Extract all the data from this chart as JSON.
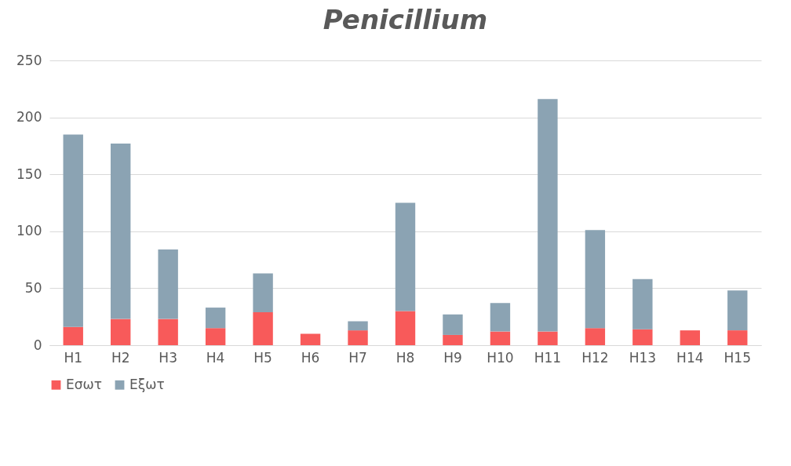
{
  "chart_data": {
    "type": "bar",
    "title": "Penicillium",
    "stacked": true,
    "categories": [
      "H1",
      "H2",
      "H3",
      "H4",
      "H5",
      "H6",
      "H7",
      "H8",
      "H9",
      "H10",
      "H11",
      "H12",
      "H13",
      "H14",
      "H15"
    ],
    "series": [
      {
        "name": "Εσωτ",
        "color": "#f85a5a",
        "values": [
          16,
          23,
          23,
          15,
          29,
          10,
          13,
          30,
          9,
          12,
          12,
          15,
          14,
          13,
          13
        ]
      },
      {
        "name": "Εξωτ",
        "color": "#8ba3b3",
        "values": [
          169,
          154,
          61,
          18,
          34,
          0,
          8,
          95,
          18,
          25,
          204,
          86,
          44,
          0,
          35
        ]
      }
    ],
    "ylim": [
      0,
      250
    ],
    "yticks": [
      0,
      50,
      100,
      150,
      200,
      250
    ],
    "grid": "y",
    "legend": "bottom"
  }
}
